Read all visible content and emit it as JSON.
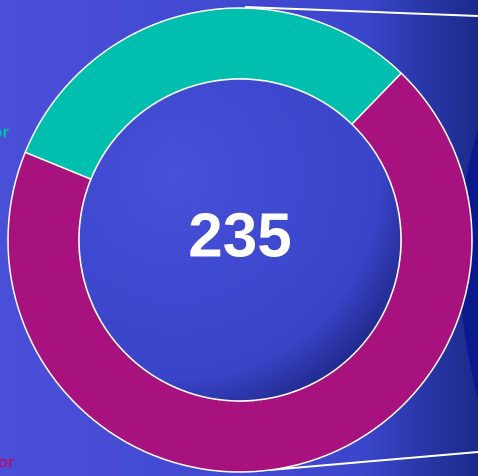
{
  "chart_data": {
    "type": "donut",
    "center_label": "235",
    "categories": [
      "or",
      "tor"
    ],
    "values": [
      73,
      162
    ],
    "colors": [
      "#00bfae",
      "#a8127f"
    ]
  }
}
